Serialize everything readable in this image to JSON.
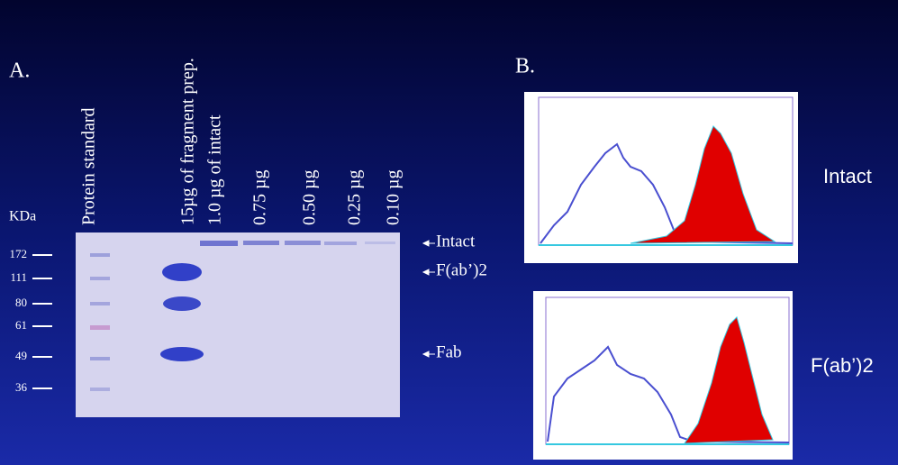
{
  "panel_a": {
    "label": "A.",
    "lane_labels": [
      "Protein standard",
      "15µg of fragment prep.",
      "1.0 µg of intact",
      "0.75 µg",
      "0.50 µg",
      "0.25 µg",
      "0.10 µg"
    ],
    "mw_unit": "KDa",
    "mw_markers": [
      "172",
      "111",
      "80",
      "61",
      "49",
      "36"
    ],
    "band_labels": [
      "Intact",
      "F(ab’)2",
      "Fab"
    ]
  },
  "panel_b": {
    "label": "B.",
    "histograms": [
      {
        "label": "Intact"
      },
      {
        "label": "F(ab’)2"
      }
    ]
  }
}
